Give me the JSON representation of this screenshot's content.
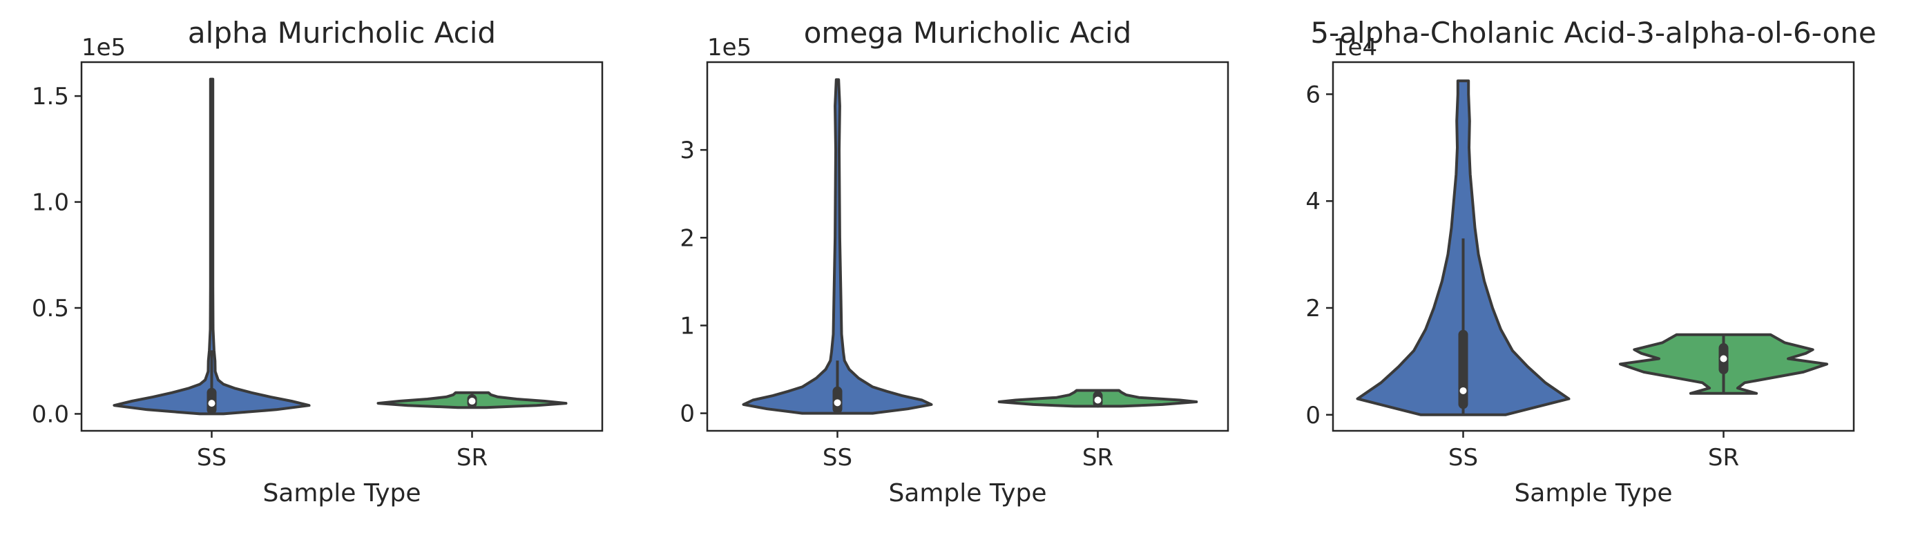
{
  "figure": {
    "background": "#ffffff",
    "axis_color": "#262626",
    "violin_edge": "#3a3a3a"
  },
  "chart_data": [
    {
      "type": "violin",
      "title": "alpha Muricholic Acid",
      "xlabel": "Sample Type",
      "ylabel": "",
      "categories": [
        "SS",
        "SR"
      ],
      "colors": [
        "#4c72b0",
        "#55a868"
      ],
      "offset_label": "1e5",
      "scale": 100000,
      "ylim": [
        -0.08,
        1.66
      ],
      "yticks": [
        0,
        0.5,
        1.0,
        1.5
      ],
      "ytick_labels": [
        "0.0",
        "0.5",
        "1.0",
        "1.5"
      ],
      "violins": [
        {
          "category": "SS",
          "min": 0,
          "max": 1.58,
          "median": 0.05,
          "q1": 0.02,
          "q3": 0.1,
          "whisker_low": 0,
          "whisker_high": 0.3,
          "profile": [
            [
              0,
              0.1
            ],
            [
              0.02,
              0.55
            ],
            [
              0.04,
              0.83
            ],
            [
              0.06,
              0.68
            ],
            [
              0.08,
              0.5
            ],
            [
              0.1,
              0.34
            ],
            [
              0.12,
              0.2
            ],
            [
              0.14,
              0.1
            ],
            [
              0.16,
              0.055
            ],
            [
              0.2,
              0.03
            ],
            [
              0.25,
              0.028
            ],
            [
              0.3,
              0.02
            ],
            [
              0.4,
              0.012
            ],
            [
              0.6,
              0.01
            ],
            [
              1.0,
              0.01
            ],
            [
              1.58,
              0.01
            ]
          ]
        },
        {
          "category": "SR",
          "min": 0.03,
          "max": 0.1,
          "median": 0.06,
          "q1": 0.05,
          "q3": 0.07,
          "whisker_low": 0.03,
          "whisker_high": 0.1,
          "profile": [
            [
              0.03,
              0.12
            ],
            [
              0.04,
              0.55
            ],
            [
              0.05,
              0.8
            ],
            [
              0.06,
              0.62
            ],
            [
              0.07,
              0.38
            ],
            [
              0.08,
              0.22
            ],
            [
              0.09,
              0.16
            ],
            [
              0.1,
              0.14
            ]
          ]
        }
      ]
    },
    {
      "type": "violin",
      "title": "omega Muricholic Acid",
      "xlabel": "Sample Type",
      "ylabel": "",
      "categories": [
        "SS",
        "SR"
      ],
      "colors": [
        "#4c72b0",
        "#55a868"
      ],
      "offset_label": "1e5",
      "scale": 100000,
      "ylim": [
        -0.2,
        4.0
      ],
      "yticks": [
        0,
        1,
        2,
        3
      ],
      "ytick_labels": [
        "0",
        "1",
        "2",
        "3"
      ],
      "violins": [
        {
          "category": "SS",
          "min": 0,
          "max": 3.8,
          "median": 0.12,
          "q1": 0.05,
          "q3": 0.25,
          "whisker_low": 0,
          "whisker_high": 0.6,
          "profile": [
            [
              0,
              0.3
            ],
            [
              0.05,
              0.6
            ],
            [
              0.1,
              0.8
            ],
            [
              0.15,
              0.72
            ],
            [
              0.2,
              0.55
            ],
            [
              0.25,
              0.42
            ],
            [
              0.3,
              0.3
            ],
            [
              0.4,
              0.18
            ],
            [
              0.5,
              0.1
            ],
            [
              0.6,
              0.06
            ],
            [
              0.7,
              0.05
            ],
            [
              0.9,
              0.035
            ],
            [
              1.3,
              0.03
            ],
            [
              2.0,
              0.02
            ],
            [
              3.0,
              0.015
            ],
            [
              3.5,
              0.02
            ],
            [
              3.8,
              0.01
            ]
          ]
        },
        {
          "category": "SR",
          "min": 0.08,
          "max": 0.26,
          "median": 0.15,
          "q1": 0.12,
          "q3": 0.2,
          "whisker_low": 0.08,
          "whisker_high": 0.26,
          "profile": [
            [
              0.08,
              0.2
            ],
            [
              0.1,
              0.55
            ],
            [
              0.13,
              0.84
            ],
            [
              0.15,
              0.7
            ],
            [
              0.18,
              0.35
            ],
            [
              0.21,
              0.24
            ],
            [
              0.24,
              0.2
            ],
            [
              0.26,
              0.18
            ]
          ]
        }
      ]
    },
    {
      "type": "violin",
      "title": "5-alpha-Cholanic Acid-3-alpha-ol-6-one",
      "xlabel": "Sample Type",
      "ylabel": "",
      "categories": [
        "SS",
        "SR"
      ],
      "colors": [
        "#4c72b0",
        "#55a868"
      ],
      "offset_label": "1e4",
      "scale": 10000,
      "ylim": [
        -0.3,
        6.6
      ],
      "yticks": [
        0,
        2,
        4,
        6
      ],
      "ytick_labels": [
        "0",
        "2",
        "4",
        "6"
      ],
      "violins": [
        {
          "category": "SS",
          "min": 0,
          "max": 6.25,
          "median": 0.45,
          "q1": 0.2,
          "q3": 1.5,
          "whisker_low": 0,
          "whisker_high": 3.3,
          "profile": [
            [
              0,
              0.36
            ],
            [
              0.3,
              0.9
            ],
            [
              0.6,
              0.7
            ],
            [
              0.9,
              0.55
            ],
            [
              1.2,
              0.42
            ],
            [
              1.6,
              0.32
            ],
            [
              2.0,
              0.25
            ],
            [
              2.5,
              0.18
            ],
            [
              3.0,
              0.13
            ],
            [
              3.5,
              0.1
            ],
            [
              4.0,
              0.08
            ],
            [
              4.5,
              0.06
            ],
            [
              5.0,
              0.05
            ],
            [
              5.5,
              0.055
            ],
            [
              6.0,
              0.045
            ],
            [
              6.25,
              0.045
            ]
          ]
        },
        {
          "category": "SR",
          "min": 0.4,
          "max": 1.5,
          "median": 1.05,
          "q1": 0.85,
          "q3": 1.25,
          "whisker_low": 0.4,
          "whisker_high": 1.5,
          "profile": [
            [
              0.4,
              0.28
            ],
            [
              0.5,
              0.12
            ],
            [
              0.6,
              0.18
            ],
            [
              0.8,
              0.68
            ],
            [
              0.95,
              0.88
            ],
            [
              1.05,
              0.55
            ],
            [
              1.15,
              0.7
            ],
            [
              1.22,
              0.76
            ],
            [
              1.35,
              0.52
            ],
            [
              1.5,
              0.4
            ]
          ]
        }
      ]
    }
  ]
}
